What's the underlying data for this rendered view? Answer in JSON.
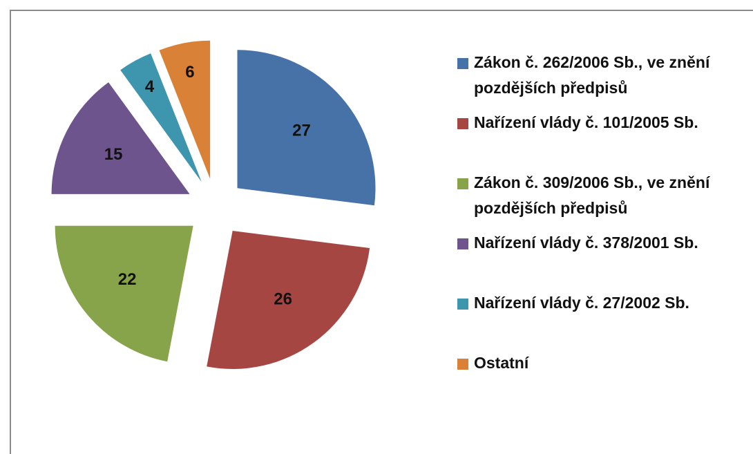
{
  "chart_data": {
    "type": "pie",
    "categories": [
      "Zákon č. 262/2006 Sb., ve znění pozdějších předpisů",
      "Nařízení vlády č. 101/2005 Sb.",
      "Zákon č. 309/2006 Sb., ve znění pozdějších předpisů",
      "Nařízení vlády č. 378/2001 Sb.",
      "Nařízení vlády č. 27/2002 Sb.",
      "Ostatní"
    ],
    "values": [
      27,
      26,
      22,
      15,
      4,
      6
    ],
    "colors": [
      "#4672a8",
      "#a64643",
      "#88a44a",
      "#6e548d",
      "#3d96ae",
      "#da8138"
    ],
    "legend": "right"
  }
}
